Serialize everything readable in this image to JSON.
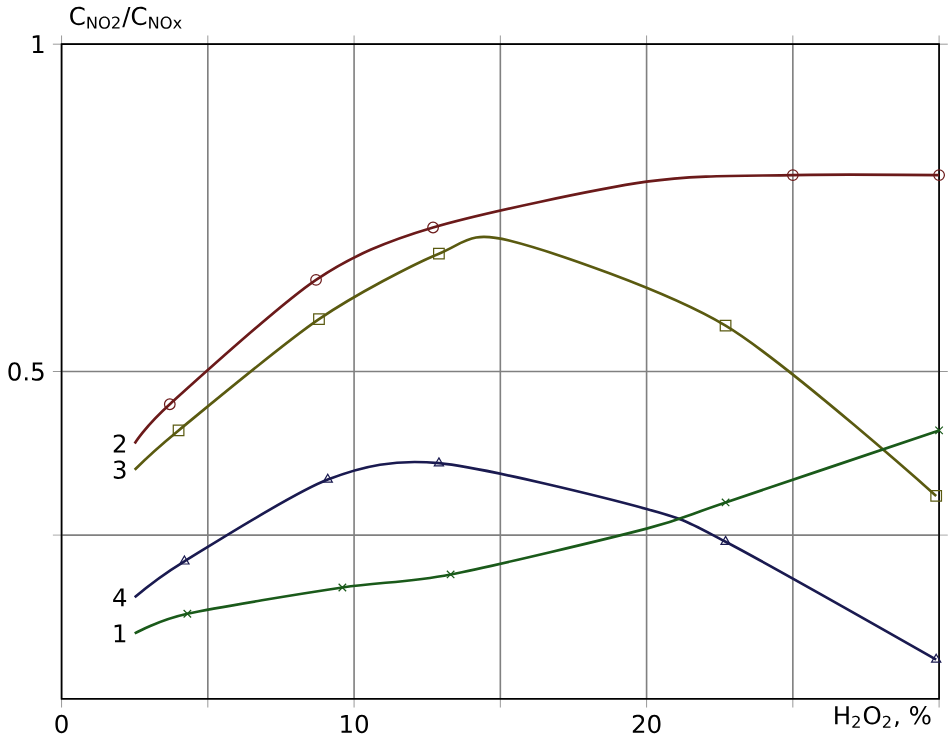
{
  "chart_data": {
    "type": "line",
    "xlabel": "H$_{2}$O$_{2}$, %",
    "ylabel": "C$_{NO2}$/C$_{NOx}$",
    "xlim": [
      0,
      30
    ],
    "ylim": [
      0,
      1
    ],
    "xticks": [
      0,
      {
        "value": 5,
        "label": null
      },
      10,
      {
        "value": 15,
        "label": null
      },
      20,
      {
        "value": 25,
        "label": null
      },
      {
        "value": 30,
        "label": null
      }
    ],
    "yticks": [
      {
        "value": 0.25,
        "label": null
      },
      0.5,
      1
    ],
    "grid": true,
    "series": [
      {
        "name": "2",
        "color": "#6b1a1a",
        "x": [
          2.5,
          3.7,
          8.7,
          12.7,
          20,
          25,
          30
        ],
        "values": [
          0.39,
          0.45,
          0.64,
          0.72,
          0.79,
          0.8,
          0.8
        ]
      },
      {
        "name": "3",
        "color": "#5a5a10",
        "x": [
          2.5,
          4.0,
          8.8,
          12.9,
          15.3,
          22.7,
          29.9
        ],
        "values": [
          0.35,
          0.41,
          0.58,
          0.68,
          0.7,
          0.57,
          0.31
        ]
      },
      {
        "name": "4",
        "color": "#1a1a50",
        "x": [
          2.5,
          4.2,
          9.1,
          12.9,
          20,
          22.7,
          29.9
        ],
        "values": [
          0.155,
          0.21,
          0.335,
          0.36,
          0.29,
          0.24,
          0.06
        ]
      },
      {
        "name": "1",
        "color": "#1a5a1a",
        "x": [
          2.5,
          4.3,
          9.6,
          13.3,
          20,
          22.7,
          30
        ],
        "values": [
          0.1,
          0.13,
          0.17,
          0.19,
          0.26,
          0.3,
          0.41
        ]
      },
      {
        "type": "scatter",
        "marker": "circle",
        "color": "#6b1a1a",
        "x": [
          3.7,
          8.7,
          12.7,
          25,
          30
        ],
        "values": [
          0.45,
          0.64,
          0.72,
          0.8,
          0.8
        ]
      },
      {
        "type": "scatter",
        "marker": "square",
        "color": "#5a5a10",
        "x": [
          4.0,
          8.8,
          12.9,
          22.7,
          29.9
        ],
        "values": [
          0.41,
          0.58,
          0.68,
          0.57,
          0.31
        ]
      },
      {
        "type": "scatter",
        "marker": "triangle",
        "color": "#1a1a50",
        "x": [
          4.2,
          9.1,
          12.9,
          22.7,
          29.9
        ],
        "values": [
          0.21,
          0.335,
          0.36,
          0.24,
          0.06
        ]
      },
      {
        "type": "scatter",
        "marker": "cross",
        "color": "#1a5a1a",
        "x": [
          4.3,
          9.6,
          13.3,
          22.7,
          30
        ],
        "values": [
          0.13,
          0.17,
          0.19,
          0.3,
          0.41
        ]
      }
    ]
  }
}
